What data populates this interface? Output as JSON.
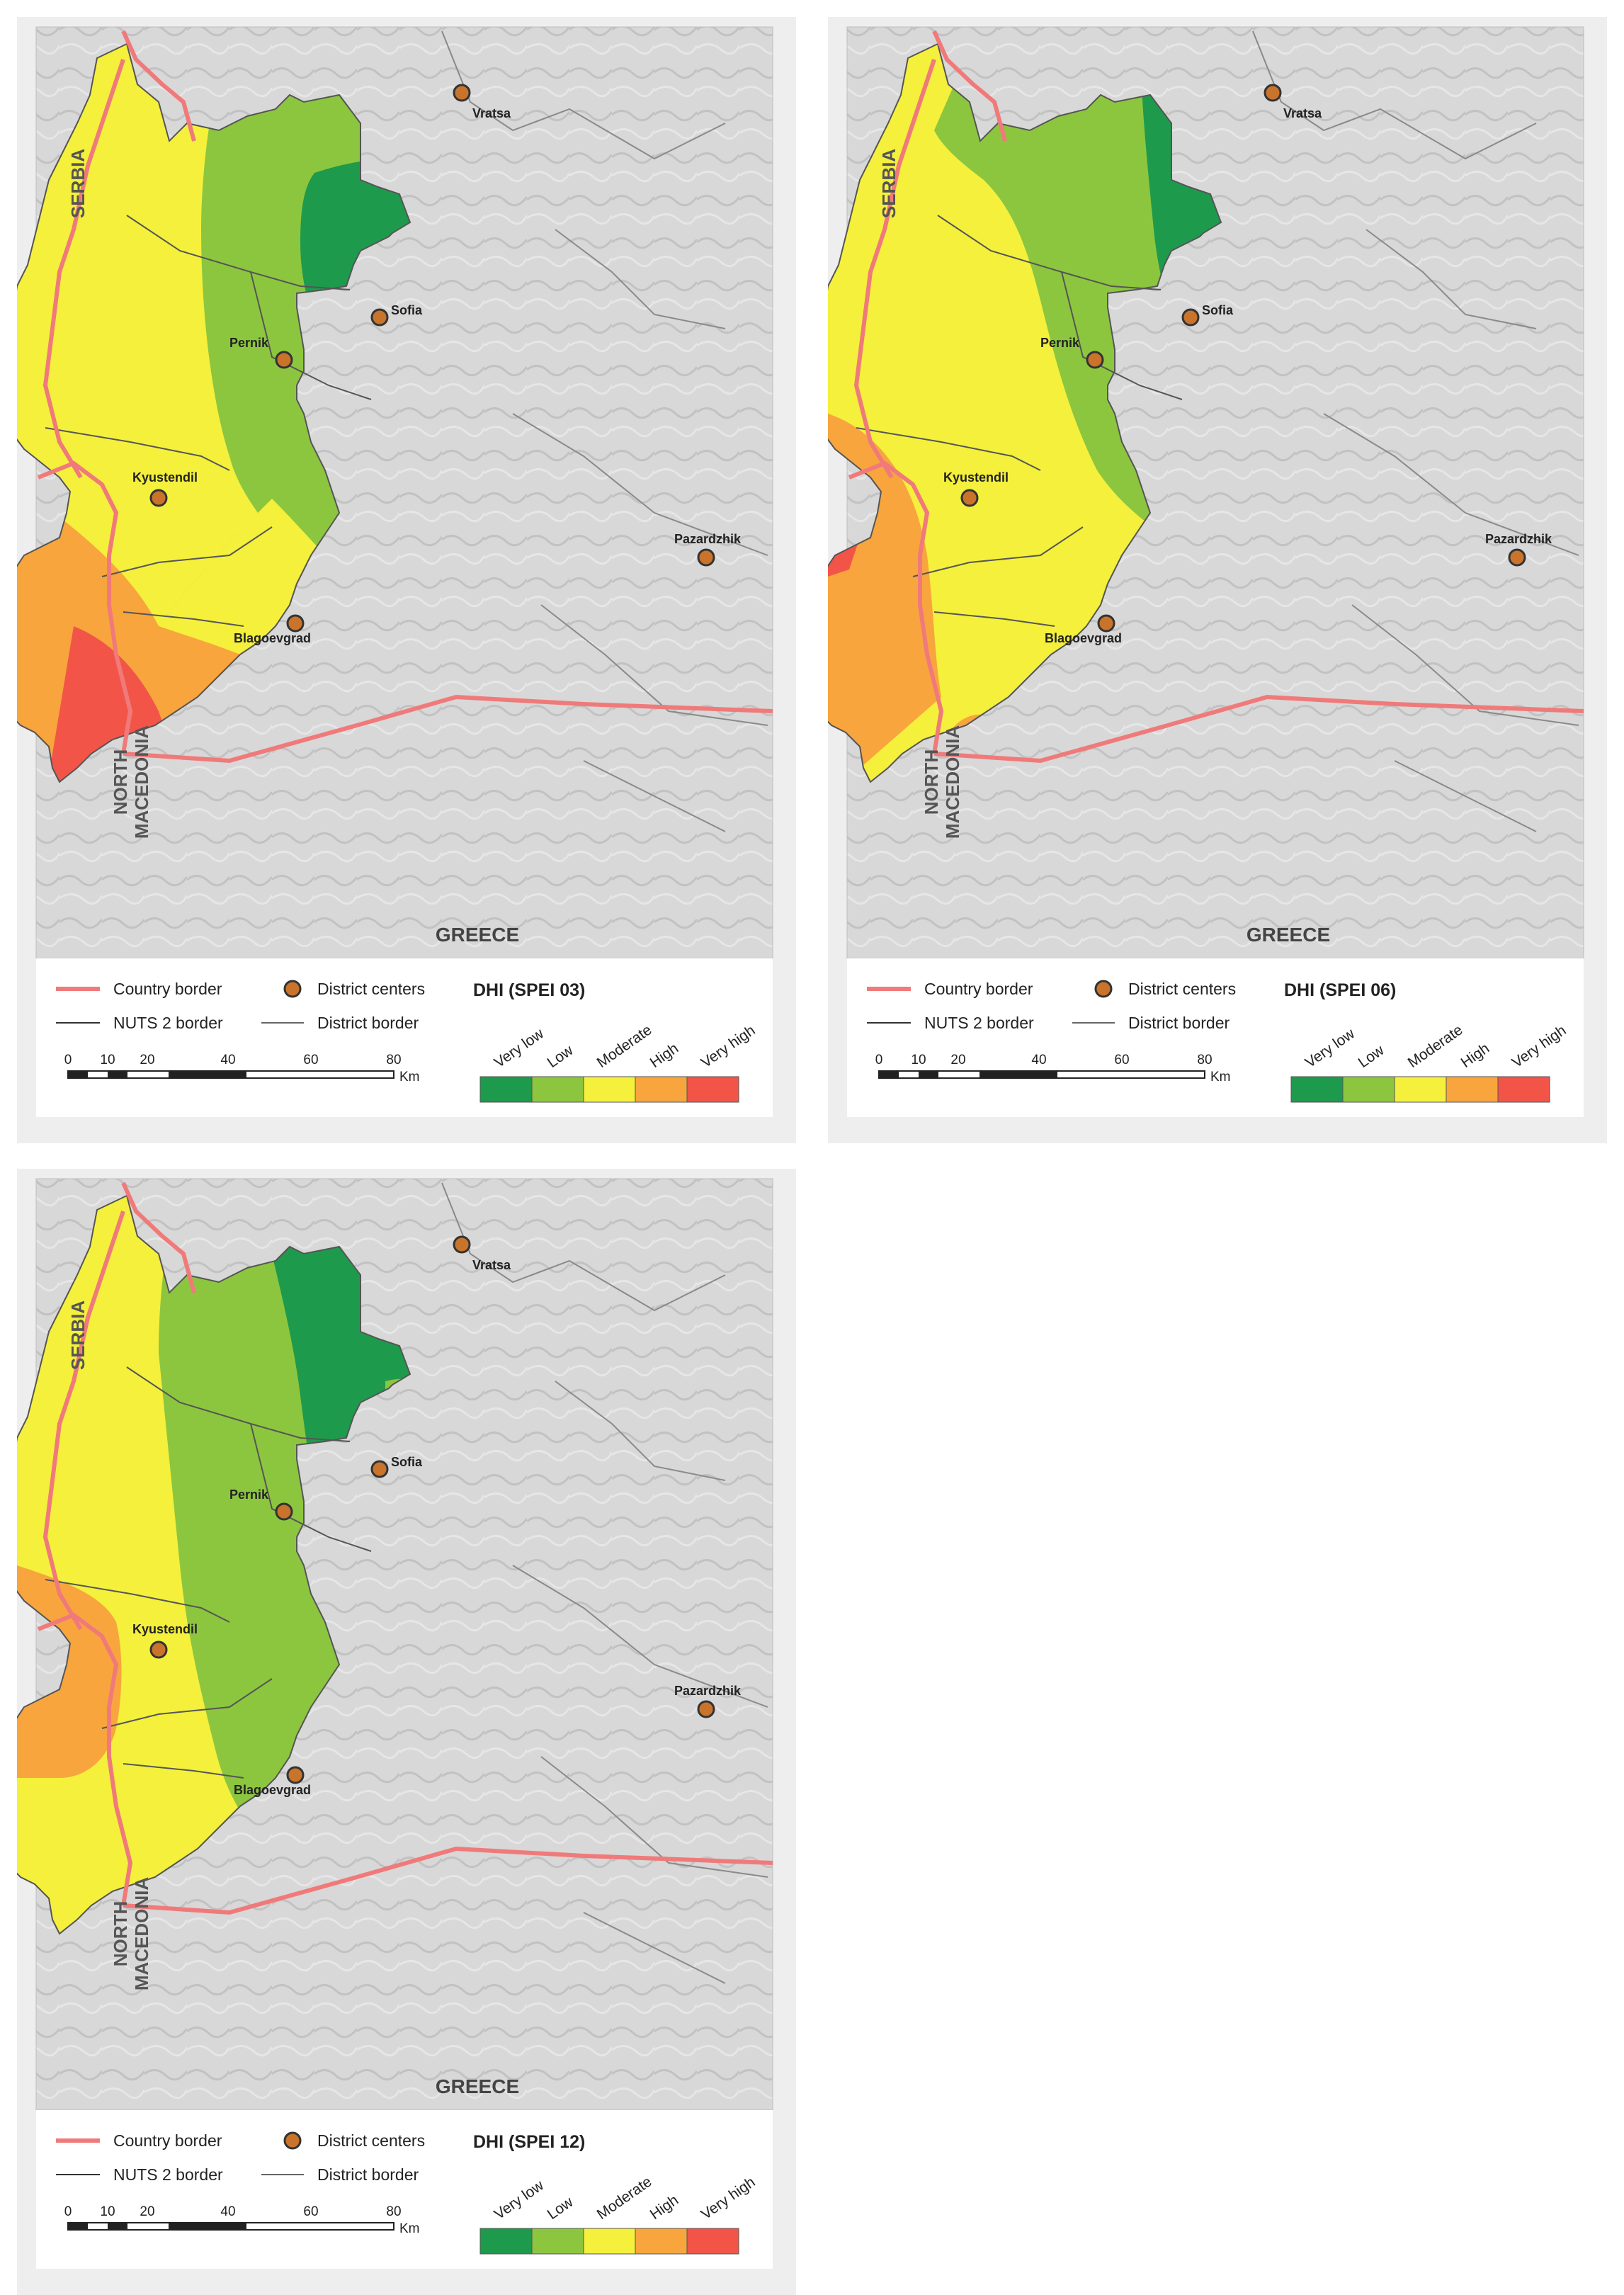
{
  "panels": [
    {
      "title": "DHI (SPEI 03)",
      "class_order": [
        "very_high",
        "high",
        "moderate",
        "low",
        "very_low"
      ],
      "countries": {
        "serbia": "SERBIA",
        "north_macedonia_line1": "NORTH",
        "north_macedonia_line2": "MACEDONIA",
        "greece": "GREECE"
      }
    },
    {
      "title": "DHI (SPEI 06)",
      "class_order": [
        "very_high",
        "high",
        "moderate",
        "low",
        "very_low"
      ],
      "countries": {
        "serbia": "SERBIA",
        "north_macedonia_line1": "NORTH",
        "north_macedonia_line2": "MACEDONIA",
        "greece": "GREECE"
      }
    },
    {
      "title": "DHI (SPEI 12)",
      "class_order": [
        "very_high",
        "high",
        "moderate",
        "low",
        "very_low",
        "low_patch"
      ],
      "countries": {
        "serbia": "SERBIA",
        "north_macedonia_line1": "NORTH",
        "north_macedonia_line2": "MACEDONIA",
        "greece": "GREECE"
      }
    }
  ],
  "cities": {
    "vratsa": "Vratsa",
    "sofia": "Sofia",
    "pernik": "Pernik",
    "kyustendil": "Kyustendil",
    "pazardzhik": "Pazardzhik",
    "blagoevgrad": "Blagoevgrad"
  },
  "legend": {
    "country_border": "Country border",
    "district_centers": "District centers",
    "nuts2_border": "NUTS 2 border",
    "district_border": "District border"
  },
  "classes": [
    {
      "key": "very_low",
      "label": "Very low",
      "color": "#1e9a4c"
    },
    {
      "key": "low",
      "label": "Low",
      "color": "#8cc63f"
    },
    {
      "key": "moderate",
      "label": "Moderate",
      "color": "#f4f03c"
    },
    {
      "key": "high",
      "label": "High",
      "color": "#f8a53e"
    },
    {
      "key": "very_high",
      "label": "Very high",
      "color": "#f25548"
    }
  ],
  "scale": {
    "ticks": [
      "0",
      "10",
      "20",
      "40",
      "60",
      "80"
    ],
    "unit": "Km"
  },
  "colors": {
    "country_border": "#f07a7a",
    "terrain": "#d7d7d7",
    "district_line": "#555555",
    "marker_fill": "#c9742a"
  }
}
